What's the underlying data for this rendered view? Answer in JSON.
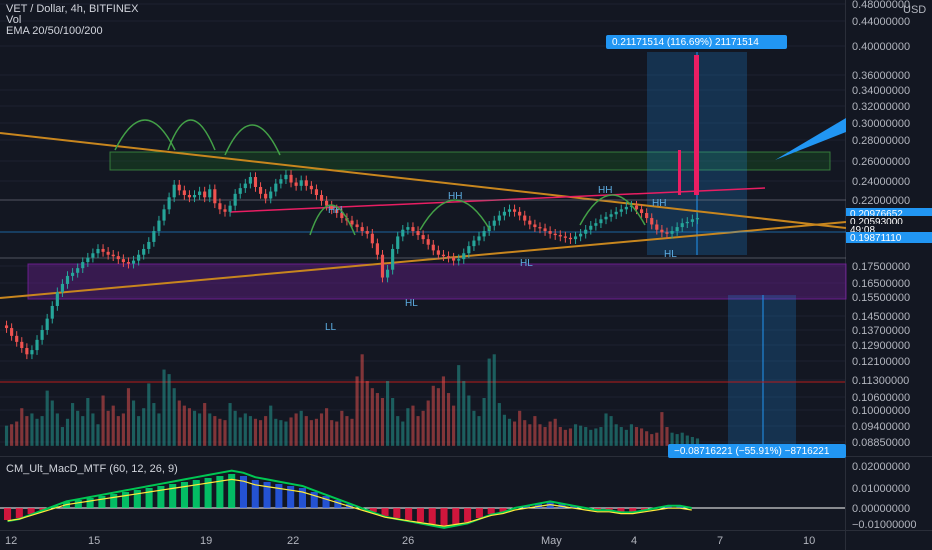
{
  "header": {
    "symbol_line": "VET / Dollar, 4h, BITFINEX",
    "vol_label": "Vol",
    "ema_label": "EMA 20/50/100/200",
    "macd_label": "CM_Ult_MacD_MTF (60, 12, 26, 9)"
  },
  "colors": {
    "background": "#131722",
    "up": "#26a69a",
    "down": "#ef5350",
    "accent_blue": "#2196f3",
    "trendline": "#c8861e",
    "box_green": "#1b5e20",
    "box_purple": "#7b1fa2",
    "fib_pink": "#e91e63"
  },
  "chart_data": [
    {
      "type": "candlestick",
      "title": "VET / Dollar, 4h, BITFINEX",
      "y_axis": {
        "currency": "USD",
        "ticks": [
          "0.48000000",
          "0.44000000",
          "0.40000000",
          "0.36000000",
          "0.34000000",
          "0.32000000",
          "0.30000000",
          "0.28000000",
          "0.26000000",
          "0.24000000",
          "0.22000000",
          "0.17500000",
          "0.16500000",
          "0.15500000",
          "0.14500000",
          "0.13700000",
          "0.12900000",
          "0.12100000",
          "0.11300000",
          "0.10600000",
          "0.10000000",
          "0.09400000",
          "0.08850000"
        ],
        "scale": "log"
      },
      "x_axis": {
        "ticks": [
          "12",
          "15",
          "19",
          "22",
          "26",
          "May",
          "4",
          "7",
          "10"
        ]
      },
      "price_tags": [
        "0.20976652",
        "0.20593000",
        "49:08",
        "0.19871110"
      ],
      "measure_up": "0.21171514 (116.69%) 21171514",
      "measure_down": "−0.08716221 (−55.91%) −8716221",
      "annotations": [
        "HH",
        "HH",
        "HH",
        "HH",
        "HL",
        "HL",
        "HL",
        "LL"
      ],
      "series": {
        "ohlc_close": [
          0.138,
          0.134,
          0.131,
          0.128,
          0.125,
          0.127,
          0.132,
          0.137,
          0.143,
          0.15,
          0.158,
          0.163,
          0.168,
          0.17,
          0.173,
          0.177,
          0.18,
          0.183,
          0.186,
          0.184,
          0.182,
          0.181,
          0.179,
          0.177,
          0.176,
          0.178,
          0.182,
          0.186,
          0.191,
          0.199,
          0.207,
          0.216,
          0.226,
          0.237,
          0.232,
          0.228,
          0.226,
          0.228,
          0.231,
          0.226,
          0.233,
          0.221,
          0.216,
          0.214,
          0.219,
          0.229,
          0.234,
          0.238,
          0.244,
          0.235,
          0.229,
          0.225,
          0.231,
          0.238,
          0.242,
          0.246,
          0.239,
          0.236,
          0.241,
          0.236,
          0.233,
          0.228,
          0.223,
          0.219,
          0.216,
          0.213,
          0.209,
          0.207,
          0.204,
          0.202,
          0.199,
          0.197,
          0.19,
          0.182,
          0.167,
          0.172,
          0.186,
          0.195,
          0.2,
          0.202,
          0.199,
          0.196,
          0.193,
          0.189,
          0.185,
          0.182,
          0.181,
          0.18,
          0.178,
          0.179,
          0.183,
          0.188,
          0.192,
          0.195,
          0.199,
          0.203,
          0.207,
          0.211,
          0.214,
          0.216,
          0.214,
          0.211,
          0.207,
          0.204,
          0.202,
          0.201,
          0.199,
          0.197,
          0.196,
          0.195,
          0.194,
          0.193,
          0.195,
          0.197,
          0.2,
          0.203,
          0.205,
          0.208,
          0.21,
          0.212,
          0.214,
          0.216,
          0.218,
          0.219,
          0.216,
          0.213,
          0.209,
          0.204,
          0.2,
          0.198,
          0.197,
          0.199,
          0.202,
          0.205,
          0.206,
          0.208,
          0.209
        ],
        "volume": [
          0.0955,
          0.096,
          0.097,
          0.102,
          0.099,
          0.1,
          0.098,
          0.099,
          0.109,
          0.105,
          0.1,
          0.095,
          0.098,
          0.104,
          0.101,
          0.099,
          0.106,
          0.1,
          0.096,
          0.107,
          0.101,
          0.103,
          0.099,
          0.1,
          0.11,
          0.105,
          0.099,
          0.102,
          0.112,
          0.104,
          0.1,
          0.118,
          0.116,
          0.11,
          0.105,
          0.103,
          0.102,
          0.101,
          0.1,
          0.104,
          0.1,
          0.099,
          0.098,
          0.0975,
          0.104,
          0.101,
          0.0985,
          0.1,
          0.099,
          0.098,
          0.0975,
          0.099,
          0.103,
          0.098,
          0.0975,
          0.097,
          0.0985,
          0.1,
          0.101,
          0.099,
          0.0975,
          0.098,
          0.1,
          0.102,
          0.0975,
          0.097,
          0.101,
          0.099,
          0.098,
          0.115,
          0.125,
          0.113,
          0.11,
          0.108,
          0.106,
          0.113,
          0.106,
          0.099,
          0.097,
          0.102,
          0.103,
          0.099,
          0.101,
          0.105,
          0.111,
          0.11,
          0.115,
          0.108,
          0.103,
          0.12,
          0.113,
          0.107,
          0.101,
          0.099,
          0.106,
          0.123,
          0.125,
          0.104,
          0.0995,
          0.098,
          0.097,
          0.101,
          0.0975,
          0.096,
          0.099,
          0.096,
          0.095,
          0.097,
          0.098,
          0.095,
          0.094,
          0.0945,
          0.096,
          0.0955,
          0.095,
          0.094,
          0.0945,
          0.095,
          0.1,
          0.099,
          0.096,
          0.095,
          0.094,
          0.096,
          0.095,
          0.0945,
          0.0935,
          0.0925,
          0.093,
          0.1005,
          0.095,
          0.093,
          0.0925,
          0.093,
          0.092,
          0.0915,
          0.091
        ]
      }
    },
    {
      "type": "histogram",
      "title": "CM_Ult_MacD_MTF (60, 12, 26, 9)",
      "y_axis": {
        "ticks": [
          "0.02000000",
          "0.01000000",
          "0.00000000",
          "−0.01000000"
        ]
      },
      "series": {
        "macd": [
          -0.006,
          -0.005,
          -0.003,
          -0.001,
          0.001,
          0.003,
          0.004,
          0.005,
          0.006,
          0.007,
          0.008,
          0.009,
          0.01,
          0.011,
          0.012,
          0.013,
          0.014,
          0.015,
          0.016,
          0.017,
          0.016,
          0.014,
          0.013,
          0.012,
          0.011,
          0.01,
          0.008,
          0.006,
          0.004,
          0.002,
          0.0,
          -0.002,
          -0.004,
          -0.005,
          -0.006,
          -0.007,
          -0.008,
          -0.009,
          -0.008,
          -0.007,
          -0.005,
          -0.003,
          -0.002,
          0.0,
          0.001,
          0.002,
          0.003,
          0.002,
          0.001,
          0.0,
          -0.001,
          -0.001,
          -0.002,
          -0.002,
          -0.001,
          0.0,
          0.001,
          0.001,
          0.0
        ]
      }
    }
  ]
}
